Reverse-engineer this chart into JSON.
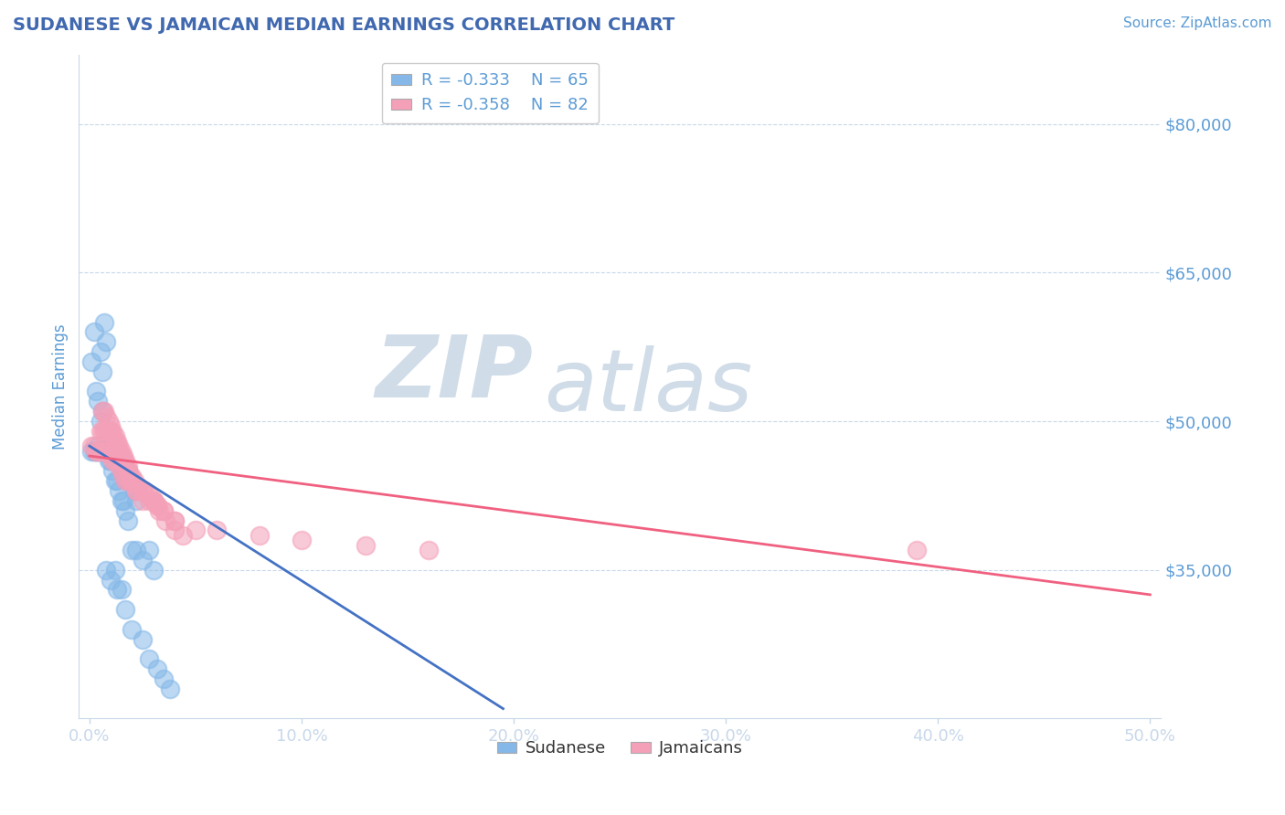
{
  "title": "SUDANESE VS JAMAICAN MEDIAN EARNINGS CORRELATION CHART",
  "title_color": "#4169b0",
  "source_text": "Source: ZipAtlas.com",
  "ylabel": "Median Earnings",
  "xlim": [
    -0.005,
    0.505
  ],
  "ylim": [
    20000,
    87000
  ],
  "yticks": [
    35000,
    50000,
    65000,
    80000
  ],
  "ytick_labels": [
    "$35,000",
    "$50,000",
    "$65,000",
    "$80,000"
  ],
  "xticks": [
    0.0,
    0.1,
    0.2,
    0.3,
    0.4,
    0.5
  ],
  "xtick_labels": [
    "0.0%",
    "10.0%",
    "20.0%",
    "30.0%",
    "40.0%",
    "50.0%"
  ],
  "axis_color": "#5b9bd5",
  "tick_label_color": "#5b9bd5",
  "grid_color": "#c8d8ea",
  "background_color": "#ffffff",
  "watermark_zip": "ZIP",
  "watermark_atlas": "atlas",
  "watermark_color": "#d0dce8",
  "legend_R1": "R = -0.333",
  "legend_N1": "N = 65",
  "legend_R2": "R = -0.358",
  "legend_N2": "N = 82",
  "legend_label1": "Sudanese",
  "legend_label2": "Jamaicans",
  "sudanese_color": "#85b8e8",
  "jamaican_color": "#f4a0b8",
  "line1_color": "#4472c4",
  "line2_color": "#f06080",
  "sudanese_x": [
    0.001,
    0.002,
    0.003,
    0.004,
    0.005,
    0.006,
    0.007,
    0.008,
    0.009,
    0.01,
    0.001,
    0.002,
    0.003,
    0.004,
    0.005,
    0.006,
    0.007,
    0.008,
    0.009,
    0.01,
    0.011,
    0.012,
    0.013,
    0.014,
    0.015,
    0.016,
    0.017,
    0.018,
    0.019,
    0.02,
    0.021,
    0.022,
    0.003,
    0.004,
    0.005,
    0.006,
    0.007,
    0.008,
    0.009,
    0.01,
    0.011,
    0.012,
    0.013,
    0.014,
    0.015,
    0.016,
    0.017,
    0.018,
    0.02,
    0.022,
    0.025,
    0.028,
    0.03,
    0.012,
    0.015,
    0.008,
    0.01,
    0.013,
    0.017,
    0.02,
    0.025,
    0.028,
    0.032,
    0.035,
    0.038
  ],
  "sudanese_y": [
    56000,
    59000,
    53000,
    52000,
    57000,
    55000,
    60000,
    58000,
    48000,
    48000,
    47000,
    47000,
    47000,
    47500,
    50000,
    51000,
    47000,
    47000,
    47000,
    47000,
    47000,
    47000,
    46000,
    46000,
    45000,
    46000,
    44000,
    45000,
    44000,
    44000,
    43000,
    42000,
    47000,
    47000,
    47000,
    47000,
    47000,
    47000,
    46000,
    46000,
    45000,
    44000,
    44000,
    43000,
    42000,
    42000,
    41000,
    40000,
    37000,
    37000,
    36000,
    37000,
    35000,
    35000,
    33000,
    35000,
    34000,
    33000,
    31000,
    29000,
    28000,
    26000,
    25000,
    24000,
    23000
  ],
  "jamaican_x": [
    0.001,
    0.002,
    0.003,
    0.004,
    0.005,
    0.006,
    0.007,
    0.008,
    0.009,
    0.01,
    0.011,
    0.012,
    0.013,
    0.014,
    0.015,
    0.016,
    0.017,
    0.018,
    0.019,
    0.02,
    0.021,
    0.022,
    0.025,
    0.028,
    0.03,
    0.032,
    0.005,
    0.006,
    0.007,
    0.008,
    0.009,
    0.01,
    0.011,
    0.012,
    0.013,
    0.014,
    0.015,
    0.016,
    0.017,
    0.018,
    0.019,
    0.02,
    0.022,
    0.025,
    0.028,
    0.03,
    0.033,
    0.036,
    0.04,
    0.044,
    0.006,
    0.007,
    0.008,
    0.009,
    0.01,
    0.011,
    0.012,
    0.013,
    0.014,
    0.015,
    0.016,
    0.017,
    0.018,
    0.02,
    0.023,
    0.026,
    0.03,
    0.032,
    0.035,
    0.04,
    0.06,
    0.08,
    0.1,
    0.13,
    0.16,
    0.02,
    0.025,
    0.03,
    0.035,
    0.04,
    0.05,
    0.39
  ],
  "jamaican_y": [
    47500,
    47500,
    47000,
    47000,
    47000,
    47000,
    47500,
    47000,
    47000,
    46500,
    46000,
    46000,
    46000,
    45500,
    45000,
    44500,
    44000,
    44000,
    44000,
    44000,
    44000,
    43000,
    43000,
    42500,
    42000,
    41500,
    49000,
    49000,
    49000,
    49000,
    49000,
    49000,
    48500,
    48000,
    47500,
    47000,
    46500,
    46000,
    45500,
    45000,
    44500,
    44000,
    43000,
    42000,
    42000,
    42000,
    41000,
    40000,
    39000,
    38500,
    51000,
    51000,
    50500,
    50000,
    49500,
    49000,
    48500,
    48000,
    47500,
    47000,
    46500,
    46000,
    45500,
    44500,
    43500,
    43000,
    42000,
    41500,
    41000,
    40000,
    39000,
    38500,
    38000,
    37500,
    37000,
    44000,
    43000,
    42000,
    41000,
    40000,
    39000,
    37000
  ],
  "line1_x0": 0.0,
  "line1_x1": 0.195,
  "line1_y0": 47500,
  "line1_y1": 21000,
  "line2_x0": 0.0,
  "line2_x1": 0.5,
  "line2_y0": 46500,
  "line2_y1": 32500
}
